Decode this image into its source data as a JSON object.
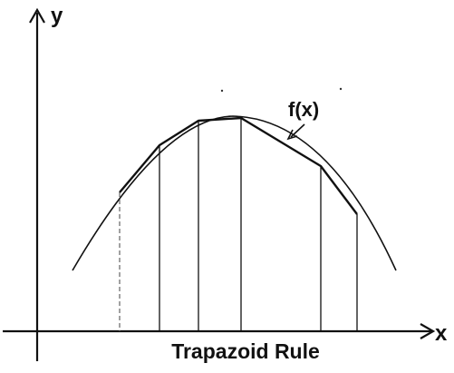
{
  "labels": {
    "y_axis": "y",
    "x_axis": "x",
    "function": "f(x)",
    "caption": "Trapazoid Rule"
  },
  "colors": {
    "ink": "#111111",
    "background": "#ffffff"
  }
}
